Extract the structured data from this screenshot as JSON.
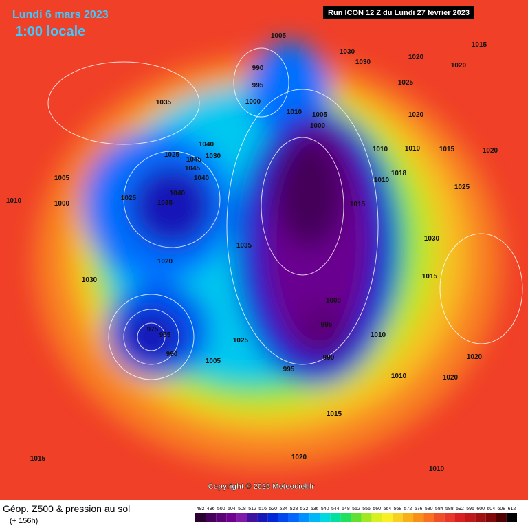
{
  "header": {
    "date": "Lundi 6 mars 2023",
    "time": "1:00 locale",
    "run": "Run ICON 12 Z du Lundi 27 février 2023"
  },
  "copyright": "Copyright © 2023 Meteociel.fr",
  "legend": {
    "title": "Géop. Z500 & pression au sol",
    "lead": "(+ 156h)",
    "scale": [
      492,
      496,
      500,
      504,
      508,
      512,
      516,
      520,
      524,
      528,
      532,
      536,
      540,
      544,
      548,
      552,
      556,
      560,
      564,
      568,
      572,
      576,
      580,
      584,
      588,
      592,
      596,
      600,
      604,
      608,
      612
    ],
    "colors": [
      "#2a0030",
      "#44005a",
      "#5c0078",
      "#700090",
      "#8018a8",
      "#4010a0",
      "#1818b8",
      "#0028d8",
      "#0048f0",
      "#0068ff",
      "#0090ff",
      "#00b8f8",
      "#00d8e0",
      "#00e0a0",
      "#20e060",
      "#60e030",
      "#a0e820",
      "#d8f020",
      "#f8f020",
      "#f8d020",
      "#f8b018",
      "#f89018",
      "#f87020",
      "#f05028",
      "#e83828",
      "#d82020",
      "#c01818",
      "#a01010",
      "#800808",
      "#500000",
      "#000000"
    ]
  },
  "isobars": [
    "1005",
    "1030",
    "1030",
    "1020",
    "1015",
    "1020",
    "990",
    "995",
    "1025",
    "1000",
    "1010",
    "1005",
    "1000",
    "1035",
    "1020",
    "1010",
    "1015",
    "1020",
    "1025",
    "1010",
    "1025",
    "1045",
    "1040",
    "1045",
    "1030",
    "1040",
    "1035",
    "1010",
    "1005",
    "1010",
    "1018",
    "1015",
    "1000",
    "1025",
    "1040",
    "1035",
    "1030",
    "1020",
    "1030",
    "1015",
    "1000",
    "995",
    "975",
    "985",
    "990",
    "1005",
    "1010",
    "990",
    "995",
    "1025",
    "1010",
    "1015",
    "1020",
    "1015",
    "1020",
    "1020",
    "1010"
  ]
}
